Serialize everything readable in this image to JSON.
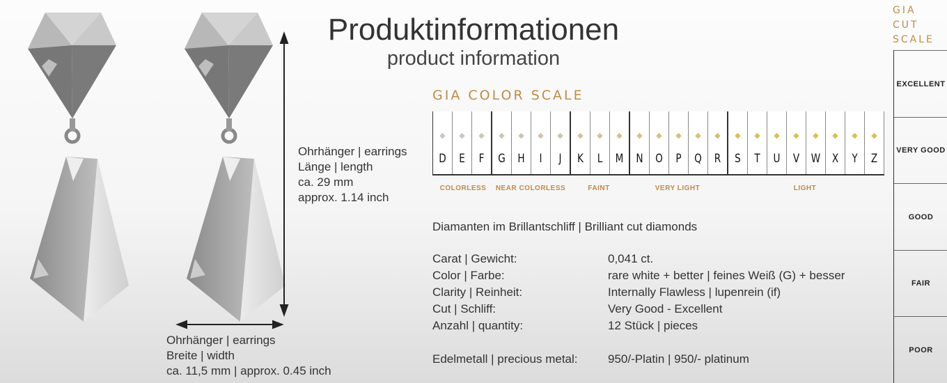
{
  "header": {
    "title": "Produktinformationen",
    "subtitle": "product information"
  },
  "length": {
    "l1": "Ohrhänger | earrings",
    "l2": "Länge  | length",
    "l3": "ca. 29 mm",
    "l4": "approx. 1.14 inch"
  },
  "width": {
    "l1": "Ohrhänger | earrings",
    "l2": "Breite | width",
    "l3": "ca. 11,5 mm | approx. 0.45 inch"
  },
  "color_scale": {
    "title": "GIA COLOR SCALE",
    "grades": [
      "D",
      "E",
      "F",
      "G",
      "H",
      "I",
      "J",
      "K",
      "L",
      "M",
      "N",
      "O",
      "P",
      "Q",
      "R",
      "S",
      "T",
      "U",
      "V",
      "W",
      "X",
      "Y",
      "Z"
    ],
    "groups": [
      "COLORLESS",
      "NEAR COLORLESS",
      "FAINT",
      "VERY LIGHT",
      "LIGHT"
    ]
  },
  "specs": {
    "heading": "Diamanten im Brillantschliff | Brilliant cut diamonds",
    "rows": [
      {
        "label": "Carat | Gewicht:",
        "value": "0,041 ct."
      },
      {
        "label": "Color | Farbe:",
        "value": "rare white + better | feines Weiß (G) + besser"
      },
      {
        "label": "Clarity | Reinheit:",
        "value": "Internally Flawless | lupenrein (if)"
      },
      {
        "label": "Cut | Schliff:",
        "value": "Very Good - Excellent"
      },
      {
        "label": "Anzahl | quantity:",
        "value": "12 Stück | pieces"
      },
      {
        "label": "Edelmetall | precious metal:",
        "value": "950/-Platin | 950/- platinum"
      }
    ]
  },
  "cut_scale": {
    "t1": "GIA",
    "t2": "CUT",
    "t3": "SCALE",
    "grades": [
      "EXCELLENT",
      "VERY GOOD",
      "GOOD",
      "FAIR",
      "POOR"
    ]
  },
  "colors": {
    "gold": "#c08a48",
    "text": "#333333"
  }
}
